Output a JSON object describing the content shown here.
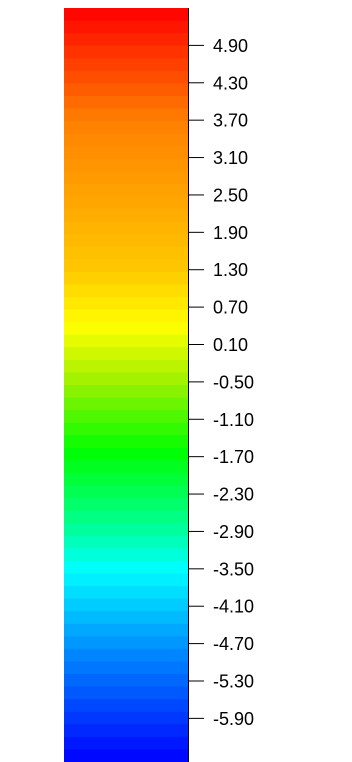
{
  "chart_data": {
    "type": "heatmap",
    "title": "",
    "xlabel": "",
    "ylabel": "",
    "orientation": "vertical",
    "tick_labels": [
      "4.90",
      "4.30",
      "3.70",
      "3.10",
      "2.50",
      "1.90",
      "1.30",
      "0.70",
      "0.10",
      "-0.50",
      "-1.10",
      "-1.70",
      "-2.30",
      "-2.90",
      "-3.50",
      "-4.10",
      "-4.70",
      "-5.30",
      "-5.90"
    ],
    "tick_values": [
      4.9,
      4.3,
      3.7,
      3.1,
      2.5,
      1.9,
      1.3,
      0.7,
      0.1,
      -0.5,
      -1.1,
      -1.7,
      -2.3,
      -2.9,
      -3.5,
      -4.1,
      -4.7,
      -5.3,
      -5.9
    ],
    "range": [
      -6.6,
      5.5
    ],
    "band_count": 60,
    "colormap": [
      {
        "value": 5.5,
        "color": "#ff0000"
      },
      {
        "value": 3.7,
        "color": "#ff7f00"
      },
      {
        "value": 1.3,
        "color": "#ffc800"
      },
      {
        "value": 0.4,
        "color": "#ffff00"
      },
      {
        "value": -0.5,
        "color": "#9ff000"
      },
      {
        "value": -1.6,
        "color": "#00ff00"
      },
      {
        "value": -2.9,
        "color": "#00ffa0"
      },
      {
        "value": -3.5,
        "color": "#00ffff"
      },
      {
        "value": -4.7,
        "color": "#0096ff"
      },
      {
        "value": -6.6,
        "color": "#0000ff"
      }
    ]
  }
}
